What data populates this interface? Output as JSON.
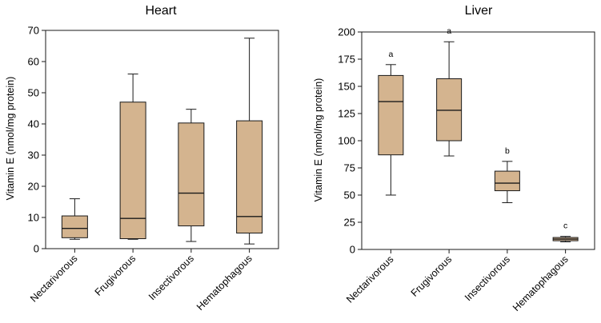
{
  "colors": {
    "box_fill": "#D4B48F",
    "stroke": "#1a1a1a",
    "background": "#ffffff"
  },
  "chart_data": [
    {
      "type": "boxplot",
      "title": "Heart",
      "ylabel": "Vitamin E (nmol/mg protein)",
      "xlabel": "",
      "ylim": [
        0,
        70
      ],
      "yticks": [
        0,
        10,
        20,
        30,
        40,
        50,
        60,
        70
      ],
      "categories": [
        "Nectarivorous",
        "Frugivorous",
        "Insectivorous",
        "Hematophagous"
      ],
      "boxes": [
        {
          "name": "Nectarivorous",
          "min": 3,
          "q1": 3.5,
          "median": 6.5,
          "q3": 10.5,
          "max": 16
        },
        {
          "name": "Frugivorous",
          "min": 3,
          "q1": 3.2,
          "median": 9.7,
          "q3": 47,
          "max": 56
        },
        {
          "name": "Insectivorous",
          "min": 2.3,
          "q1": 7.3,
          "median": 17.8,
          "q3": 40.3,
          "max": 44.7
        },
        {
          "name": "Hematophagous",
          "min": 1.5,
          "q1": 5,
          "median": 10.3,
          "q3": 41,
          "max": 67.5
        }
      ],
      "annotations": [
        "",
        "",
        "",
        ""
      ]
    },
    {
      "type": "boxplot",
      "title": "Liver",
      "ylabel": "Vitamin E (nmol/mg protein)",
      "xlabel": "",
      "ylim": [
        0,
        200
      ],
      "yticks": [
        0,
        25,
        50,
        75,
        100,
        125,
        150,
        175,
        200
      ],
      "categories": [
        "Nectarivorous",
        "Frugivorous",
        "Insectivorous",
        "Hematophagous"
      ],
      "boxes": [
        {
          "name": "Nectarivorous",
          "min": 50,
          "q1": 87,
          "median": 136,
          "q3": 160,
          "max": 170
        },
        {
          "name": "Frugivorous",
          "min": 86,
          "q1": 100,
          "median": 128,
          "q3": 157,
          "max": 191
        },
        {
          "name": "Insectivorous",
          "min": 43,
          "q1": 54,
          "median": 61,
          "q3": 72,
          "max": 81
        },
        {
          "name": "Hematophagous",
          "min": 7,
          "q1": 8,
          "median": 9.5,
          "q3": 11,
          "max": 12
        }
      ],
      "annotations": [
        "a",
        "a",
        "b",
        "c"
      ]
    }
  ]
}
